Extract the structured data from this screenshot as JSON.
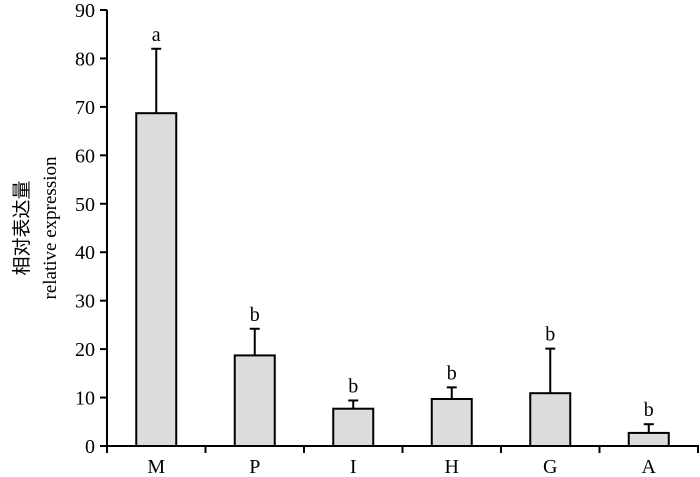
{
  "chart_data": {
    "type": "bar",
    "title": "",
    "xlabel": "",
    "ylabel_lines": [
      "相对表达量",
      "relative expression"
    ],
    "categories": [
      "M",
      "P",
      "I",
      "H",
      "G",
      "A"
    ],
    "values": [
      68.7,
      18.7,
      7.7,
      9.7,
      10.9,
      2.7
    ],
    "error_upper": [
      13.3,
      5.5,
      1.7,
      2.4,
      9.2,
      1.8
    ],
    "significance_labels": [
      "a",
      "b",
      "b",
      "b",
      "b",
      "b"
    ],
    "ylim": [
      0,
      90
    ],
    "yticks": [
      0,
      10,
      20,
      30,
      40,
      50,
      60,
      70,
      80,
      90
    ],
    "grid": false,
    "bar_color": "#dcdcdc",
    "edge_color": "#000000"
  }
}
